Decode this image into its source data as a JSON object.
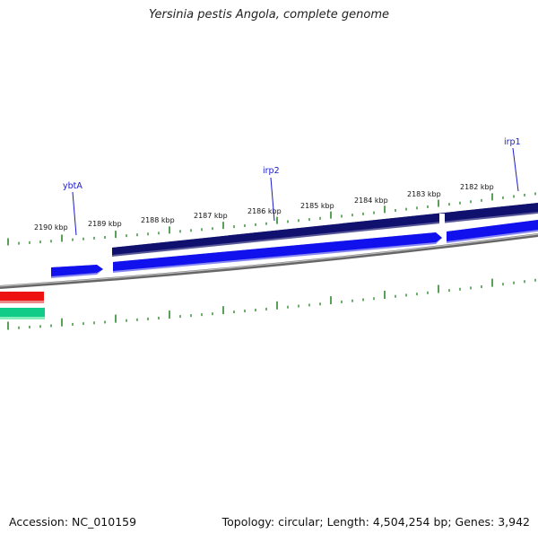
{
  "title": "Yersinia pestis Angola, complete genome",
  "footer": {
    "accession": "Accession: NC_010159",
    "summary": "Topology: circular; Length: 4,504,254 bp; Genes: 3,942"
  },
  "ruler": {
    "unit": "kbp",
    "labels": [
      "2190 kbp",
      "2189 kbp",
      "2188 kbp",
      "2187 kbp",
      "2186 kbp",
      "2185 kbp",
      "2184 kbp",
      "2183 kbp",
      "2182 kbp"
    ]
  },
  "genes": {
    "labels": [
      "ybtA",
      "irp2",
      "irp1"
    ]
  },
  "colors": {
    "backbone": "#888888",
    "tick": "#2e8b2e",
    "gene_label": "#1a1acc",
    "forward_dark": "#10106e",
    "forward": "#1111ee",
    "other_red": "#ee1111",
    "other_green": "#11cc88"
  }
}
